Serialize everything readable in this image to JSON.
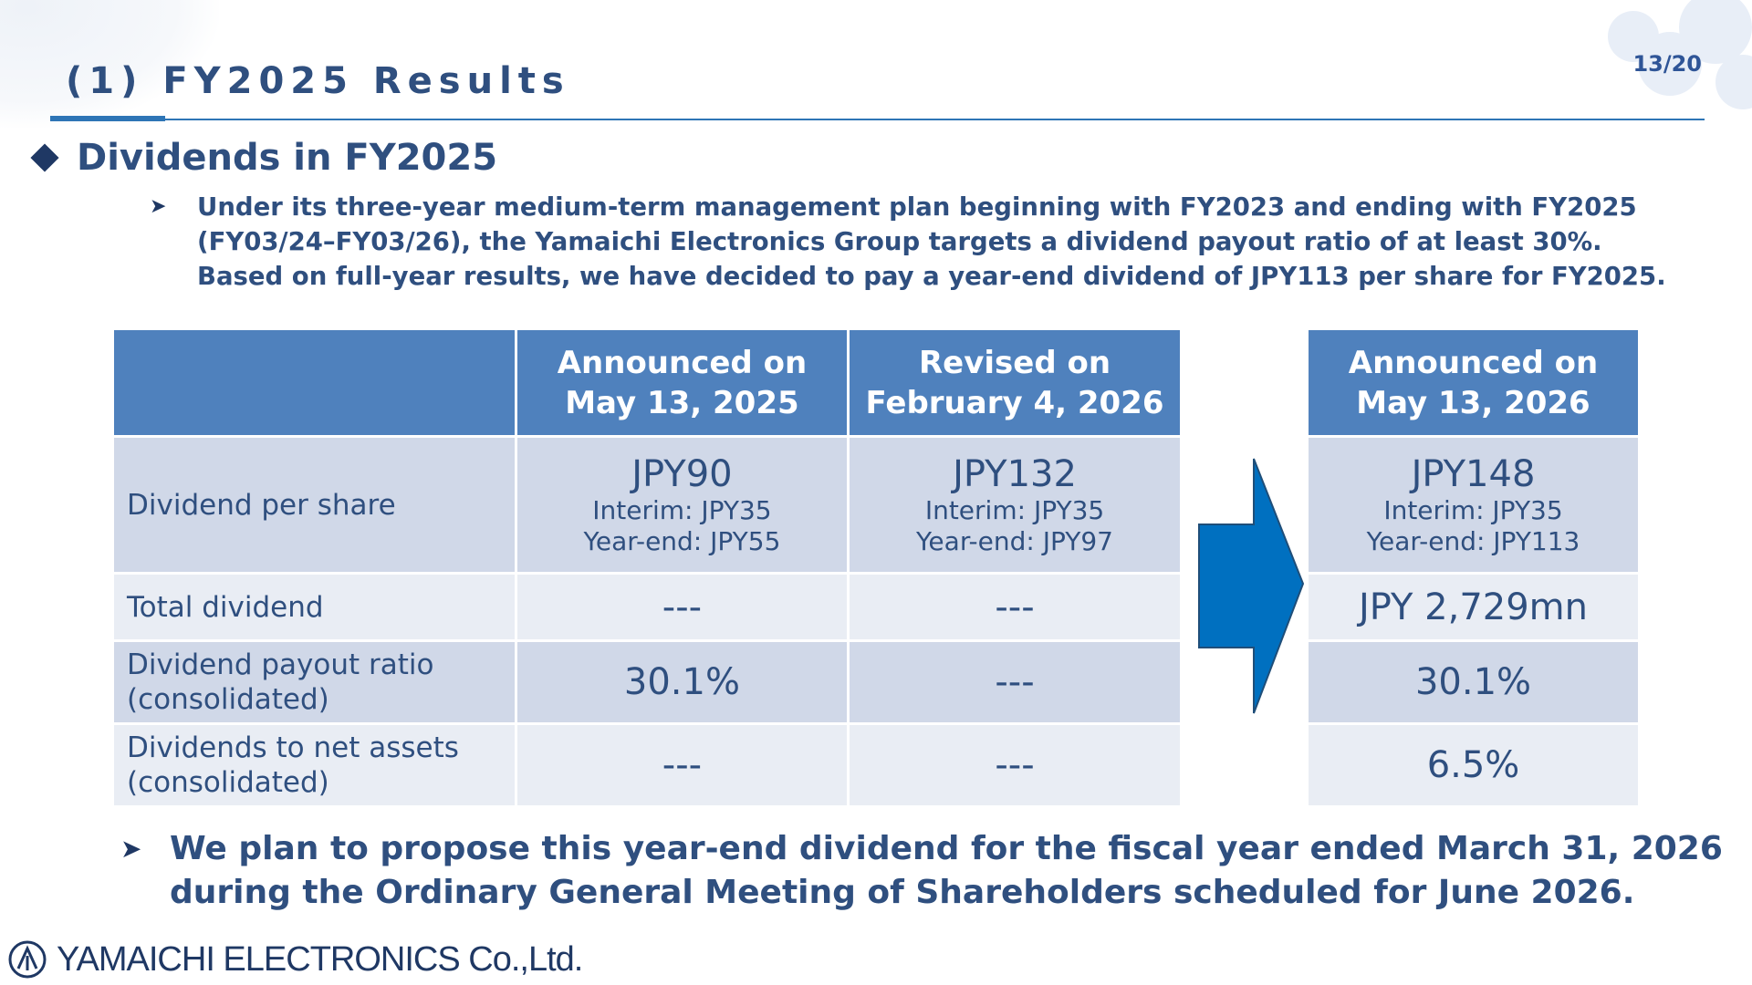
{
  "page_number": "13/20",
  "title": "(1)  FY2025 Results",
  "section_heading": "Dividends in FY2025",
  "intro_lines": [
    "Under its three-year medium-term management plan beginning with FY2023 and ending with FY2025",
    "(FY03/24–FY03/26), the Yamaichi Electronics Group targets a dividend payout ratio of at least 30%.",
    "Based on full-year results, we have decided to pay a year-end dividend of JPY113 per share for FY2025."
  ],
  "table": {
    "headers": [
      [
        "Announced on",
        "May 13, 2025"
      ],
      [
        "Revised on",
        "February 4, 2026"
      ],
      [
        "Announced on",
        "May 13, 2026"
      ]
    ],
    "rows": [
      {
        "label": [
          "Dividend per share"
        ],
        "cells": [
          {
            "main": "JPY90",
            "sub1": "Interim: JPY35",
            "sub2": "Year-end: JPY55"
          },
          {
            "main": "JPY132",
            "sub1": "Interim: JPY35",
            "sub2": "Year-end: JPY97"
          },
          {
            "main": "JPY148",
            "sub1": "Interim: JPY35",
            "sub2": "Year-end: JPY113"
          }
        ]
      },
      {
        "label": [
          "Total dividend"
        ],
        "cells": [
          {
            "main": "---"
          },
          {
            "main": "---"
          },
          {
            "main": "JPY 2,729mn"
          }
        ]
      },
      {
        "label": [
          "Dividend payout ratio",
          "(consolidated)"
        ],
        "cells": [
          {
            "main": "30.1%"
          },
          {
            "main": "---"
          },
          {
            "main": "30.1%"
          }
        ]
      },
      {
        "label": [
          "Dividends to net assets",
          "(consolidated)"
        ],
        "cells": [
          {
            "main": "---"
          },
          {
            "main": "---"
          },
          {
            "main": "6.5%"
          }
        ]
      }
    ]
  },
  "footer_lines": [
    "We plan to propose this year-end dividend for the fiscal year ended March 31, 2026",
    "during the Ordinary General Meeting of Shareholders scheduled for June 2026."
  ],
  "company_logo_text": "YAMAICHI ELECTRONICS Co.,Ltd.",
  "colors": {
    "header_bg": "#4f81bd",
    "row_dark": "#d0d8e8",
    "row_light": "#e9edf4",
    "text": "#2f4f7f",
    "arrow": "#0070c0"
  }
}
